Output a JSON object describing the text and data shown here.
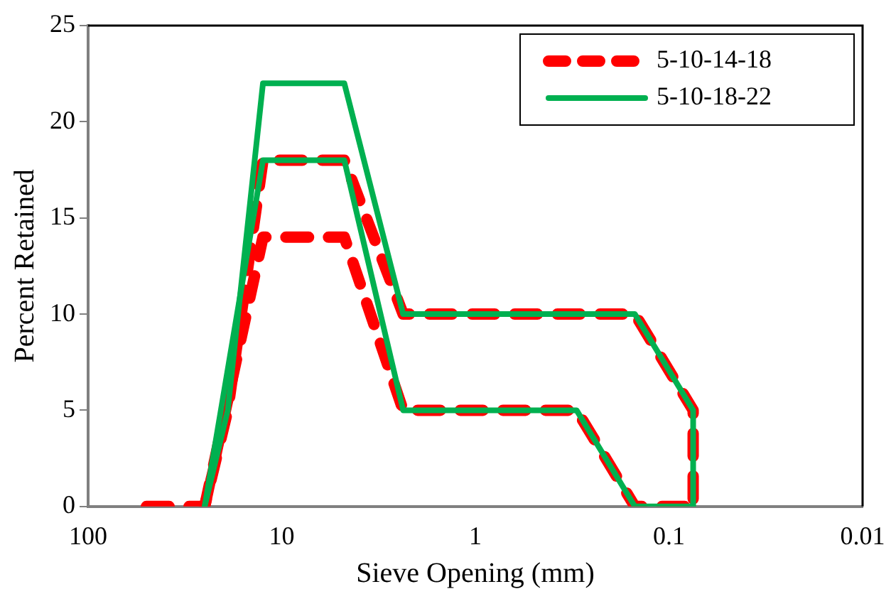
{
  "chart_data": {
    "type": "line",
    "xlabel": "Sieve Opening (mm)",
    "ylabel": "Percent Retained",
    "log": "x",
    "xlim": [
      100,
      0.01
    ],
    "xticks": [
      100,
      10,
      1,
      0.1,
      0.01
    ],
    "ylim": [
      0,
      25
    ],
    "yticks": [
      0,
      5,
      10,
      15,
      20,
      25
    ],
    "grid": false,
    "legend": "top right",
    "marker": "none",
    "series": [
      {
        "name": "5-10-14-18",
        "color": "#ff0000",
        "line_style": "dashed",
        "x": [
          50,
          25,
          19,
          12.5,
          4.75,
          2.36,
          0.15,
          0.075,
          0.075
        ],
        "values": [
          0,
          0,
          5,
          18,
          18,
          10,
          10,
          5,
          0
        ]
      },
      {
        "color": "#ff0000",
        "line_style": "dashed",
        "x": [
          25,
          12.5,
          4.75,
          2.36,
          0.3,
          0.15,
          0.075
        ],
        "values": [
          0,
          14,
          14,
          5,
          5,
          0,
          0
        ]
      },
      {
        "name": "5-10-18-22",
        "color": "#00b050",
        "line_style": "solid",
        "x": [
          25,
          19,
          12.5,
          4.75,
          2.36,
          0.15,
          0.075,
          0.075
        ],
        "values": [
          0,
          5,
          22,
          22,
          10,
          10,
          5,
          0
        ]
      },
      {
        "color": "#00b050",
        "line_style": "solid",
        "x": [
          25,
          12.5,
          4.75,
          2.36,
          0.3,
          0.15,
          0.075
        ],
        "values": [
          0,
          18,
          18,
          5,
          5,
          0,
          0
        ]
      }
    ]
  }
}
